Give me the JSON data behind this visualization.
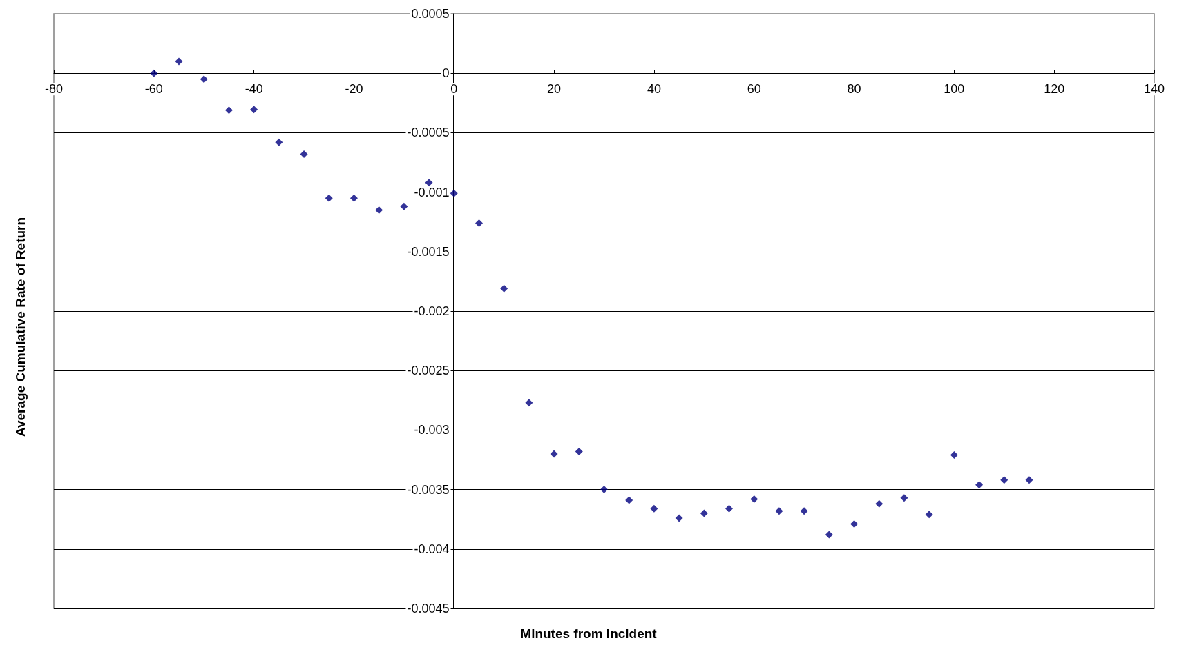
{
  "chart_data": {
    "type": "scatter",
    "xlabel": "Minutes from Incident",
    "ylabel": "Average Cumulative Rate of Return",
    "x": [
      -60,
      -55,
      -50,
      -45,
      -40,
      -35,
      -30,
      -25,
      -20,
      -15,
      -10,
      -5,
      0,
      5,
      10,
      15,
      20,
      25,
      30,
      35,
      40,
      45,
      50,
      55,
      60,
      65,
      70,
      75,
      80,
      85,
      90,
      95,
      100,
      105,
      110,
      115
    ],
    "series": [
      {
        "color": "#000080",
        "values": [
          0,
          0.0001,
          -5e-05,
          -0.00031,
          -0.000305,
          -0.00058,
          -0.00068,
          -0.00105,
          -0.00105,
          -0.00115,
          -0.00112,
          -0.00092,
          -0.00101,
          -0.00126,
          -0.00181,
          -0.00277,
          -0.0032,
          -0.00318,
          -0.0035,
          -0.00359,
          -0.00366,
          -0.00374,
          -0.0037,
          -0.00366,
          -0.00358,
          -0.00368,
          -0.00368,
          -0.00388,
          -0.00379,
          -0.00362,
          -0.00357,
          -0.00371,
          -0.00321,
          -0.00346,
          -0.00342,
          -0.00342
        ]
      }
    ],
    "xlim": [
      -80,
      140
    ],
    "xticks": [
      -80,
      -60,
      -40,
      -20,
      0,
      20,
      40,
      60,
      80,
      100,
      120,
      140
    ],
    "ylim": [
      -0.0045,
      0.0005
    ],
    "yticks": [
      -0.0045,
      -0.004,
      -0.0035,
      -0.003,
      -0.0025,
      -0.002,
      -0.0015,
      -0.001,
      -0.0005,
      0,
      0.0005
    ],
    "grid": "y",
    "marker": "diamond"
  }
}
